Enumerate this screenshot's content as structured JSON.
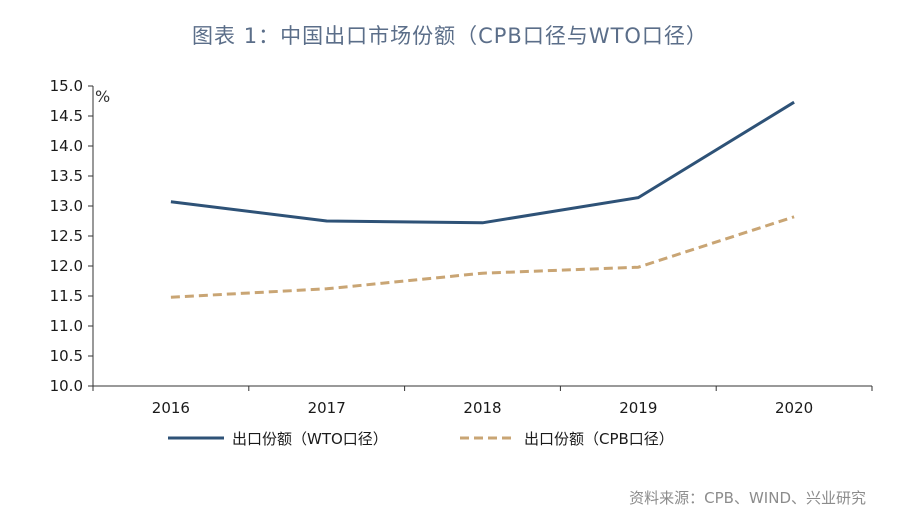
{
  "title": "图表 1：中国出口市场份额（CPB口径与WTO口径）",
  "source": "资料来源：CPB、WIND、兴业研究",
  "colors": {
    "wto": "#2e5277",
    "cpb": "#c9a574",
    "axis": "#333333",
    "title": "#5b6e89"
  },
  "chart_data": {
    "type": "line",
    "title": "图表 1：中国出口市场份额（CPB口径与WTO口径）",
    "xlabel": "",
    "ylabel": "%",
    "categories": [
      "2016",
      "2017",
      "2018",
      "2019",
      "2020"
    ],
    "ylim": [
      10.0,
      15.0
    ],
    "yticks": [
      "10.0",
      "10.5",
      "11.0",
      "11.5",
      "12.0",
      "12.5",
      "13.0",
      "13.5",
      "14.0",
      "14.5",
      "15.0"
    ],
    "grid": false,
    "legend_position": "bottom",
    "series": [
      {
        "name": "出口份额（WTO口径）",
        "style": "solid",
        "values": [
          13.07,
          12.75,
          12.72,
          13.14,
          14.73
        ]
      },
      {
        "name": "出口份额（CPB口径）",
        "style": "dashed",
        "values": [
          11.48,
          11.62,
          11.88,
          11.98,
          12.82
        ]
      }
    ]
  }
}
